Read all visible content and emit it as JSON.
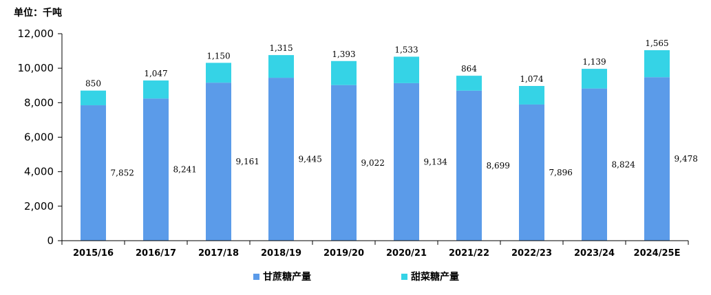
{
  "chart_data": {
    "type": "bar",
    "stacked": true,
    "unit_label": "单位：千吨",
    "categories": [
      "2015/16",
      "2016/17",
      "2017/18",
      "2018/19",
      "2019/20",
      "2020/21",
      "2021/22",
      "2022/23",
      "2023/24",
      "2024/25E"
    ],
    "series": [
      {
        "name": "甘蔗糖产量",
        "color": "#5B9BE9",
        "values": [
          7852,
          8241,
          9161,
          9445,
          9022,
          9134,
          8699,
          7896,
          8824,
          9478
        ]
      },
      {
        "name": "甜菜糖产量",
        "color": "#35D3E6",
        "values": [
          850,
          1047,
          1150,
          1315,
          1393,
          1533,
          864,
          1074,
          1139,
          1565
        ]
      }
    ],
    "data_labels": {
      "series0": [
        "7,852",
        "8,241",
        "9,161",
        "9,445",
        "9,022",
        "9,134",
        "8,699",
        "7,896",
        "8,824",
        "9,478"
      ],
      "series1": [
        "850",
        "1,047",
        "1,150",
        "1,315",
        "1,393",
        "1,533",
        "864",
        "1,074",
        "1,139",
        "1,565"
      ]
    },
    "y_ticks": [
      0,
      2000,
      4000,
      6000,
      8000,
      10000,
      12000
    ],
    "y_tick_labels": [
      "0",
      "2,000",
      "4,000",
      "6,000",
      "8,000",
      "10,000",
      "12,000"
    ],
    "ylim": [
      0,
      12000
    ],
    "grid": false,
    "legend_position": "bottom"
  }
}
